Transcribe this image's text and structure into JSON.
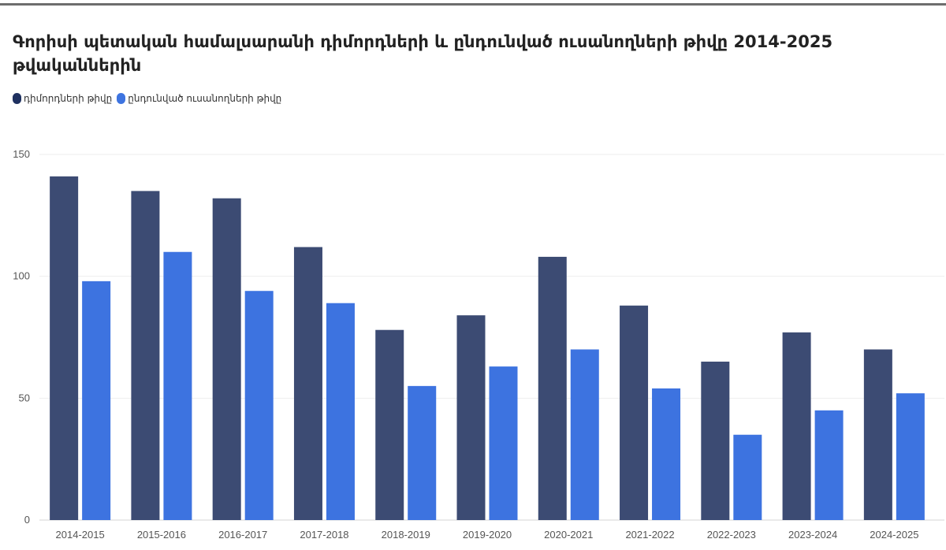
{
  "title": "Գորիսի պետական համալսարանի դիմորդների և ընդունված ուսանողների թիվը 2014-2025 թվականներին",
  "legend": [
    {
      "label": "դիմորդների թիվը",
      "color": "#1f3160"
    },
    {
      "label": "ընդունված ուսանողների թիվը",
      "color": "#3e74e0"
    }
  ],
  "chart_data": {
    "type": "bar",
    "categories": [
      "2014-2015",
      "2015-2016",
      "2016-2017",
      "2017-2018",
      "2018-2019",
      "2019-2020",
      "2020-2021",
      "2021-2022",
      "2022-2023",
      "2023-2024",
      "2024-2025"
    ],
    "series": [
      {
        "name": "դիմորդների թիվը",
        "color": "#3c4b73",
        "values": [
          141,
          135,
          132,
          112,
          78,
          84,
          108,
          88,
          65,
          77,
          70
        ]
      },
      {
        "name": "ընդունված ուսանողների թիվը",
        "color": "#3d73e0",
        "values": [
          98,
          110,
          94,
          89,
          55,
          63,
          70,
          54,
          35,
          45,
          52
        ]
      }
    ],
    "ylim": [
      0,
      150
    ],
    "yticks": [
      0,
      50,
      100,
      150
    ],
    "grid": true,
    "legend_position": "top-left"
  }
}
